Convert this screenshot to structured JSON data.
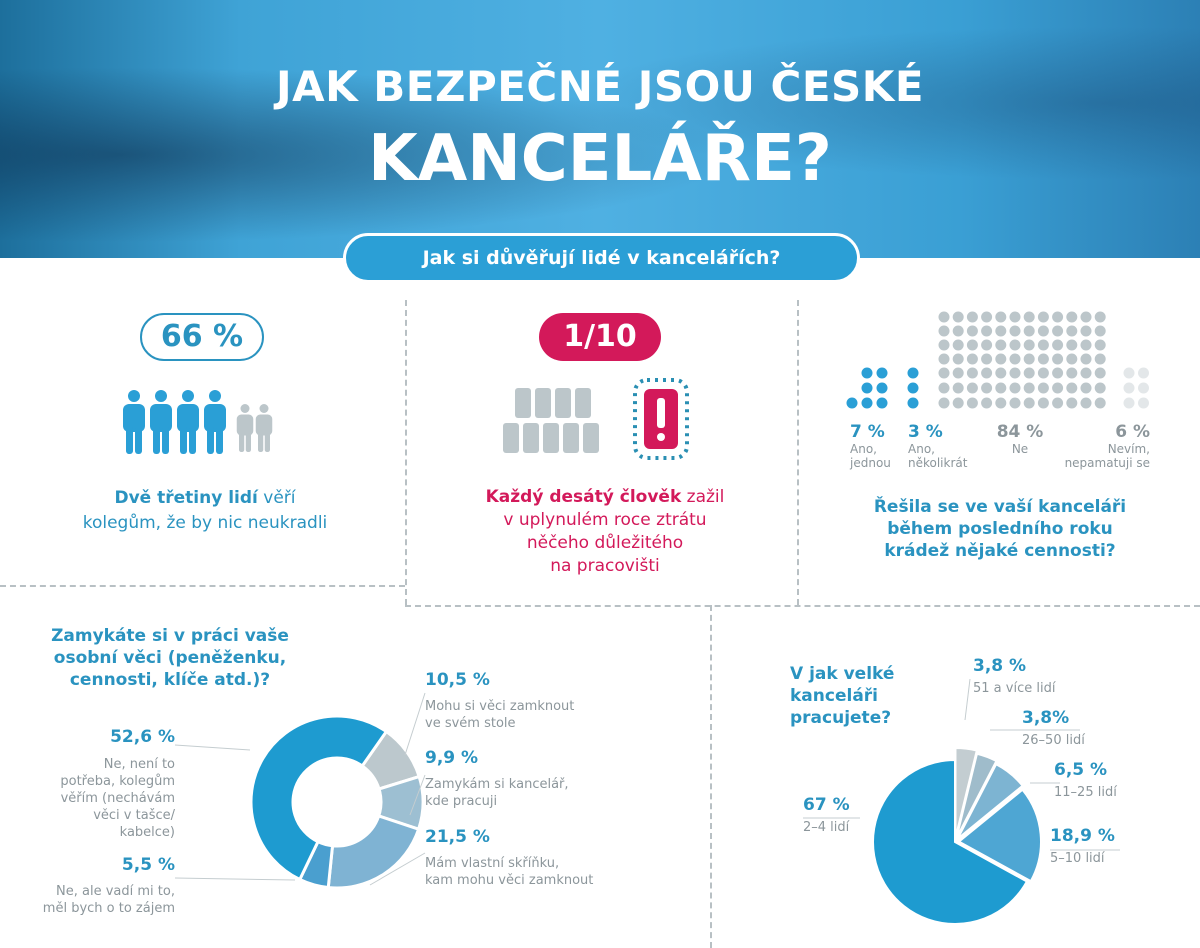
{
  "header": {
    "title_line1": "JAK BEZPEČNÉ JSOU ČESKÉ",
    "title_line2": "KANCELÁŘE?",
    "subtitle": "Jak si důvěřují lidé v kancelářích?"
  },
  "trust": {
    "stat": "66 %",
    "text_bold": "Dvě třetiny lidí",
    "text_rest1": " věří",
    "text_rest2": "kolegům, že by nic neukradli",
    "people_trusting": 4,
    "people_total": 6
  },
  "loss": {
    "stat": "1/10",
    "text_bold": "Každý desátý člověk",
    "text_rest1": " zažil",
    "line2": "v uplynulém roce ztrátu",
    "line3": "něčeho důležitého",
    "line4": "na pracovišti"
  },
  "colors": {
    "blue": "#2a9fd6",
    "teal_text": "#2a93c0",
    "pink": "#d3195a",
    "gray": "#bcc6ca"
  },
  "chart_data": [
    {
      "type": "dot-matrix",
      "title": "Řešila se ve vaší kanceláři během posledního roku krádež nějaké cennosti?",
      "title_lines": [
        "Řešila se ve vaší kanceláři",
        "během posledního roku",
        "krádež nějaké cennosti?"
      ],
      "categories": [
        {
          "value": "7 %",
          "label1": "Ano,",
          "label2": "jednou",
          "count": 7,
          "color": "#2a9fd6"
        },
        {
          "value": "3 %",
          "label1": "Ano,",
          "label2": "několikrát",
          "count": 3,
          "color": "#2a9fd6"
        },
        {
          "value": "84 %",
          "label1": "Ne",
          "label2": "",
          "count": 84,
          "color": "#bcc6ca"
        },
        {
          "value": "6 %",
          "label1": "Nevím,",
          "label2": "nepamatuji se",
          "count": 6,
          "color": "#e3e7e9"
        }
      ]
    },
    {
      "type": "donut",
      "title_lines": [
        "Zamykáte si v práci vaše",
        "osobní věci (peněženku,",
        "cennosti, klíče atd.)?"
      ],
      "series": [
        {
          "value": 10.5,
          "label": "10,5 %",
          "desc": [
            "Mohu si věci zamknout",
            "ve svém stole"
          ],
          "color": "#bcc8cd"
        },
        {
          "value": 9.9,
          "label": "9,9 %",
          "desc": [
            "Zamykám si kancelář,",
            "kde pracuji"
          ],
          "color": "#9dbfd2"
        },
        {
          "value": 21.5,
          "label": "21,5 %",
          "desc": [
            "Mám vlastní skříňku,",
            "kam mohu věci zamknout"
          ],
          "color": "#7fb3d3"
        },
        {
          "value": 5.5,
          "label": "5,5 %",
          "desc": [
            "Ne, ale vadí mi to,",
            "měl bych o to zájem"
          ],
          "color": "#4a9fcf"
        },
        {
          "value": 52.6,
          "label": "52,6 %",
          "desc": [
            "Ne, není to",
            "potřeba, kolegům",
            "věřím (nechávám",
            "věci v tašce/",
            "kabelce)"
          ],
          "color": "#1e9bd0"
        }
      ]
    },
    {
      "type": "pie",
      "title_lines": [
        "V jak velké",
        "kanceláři",
        "pracujete?"
      ],
      "series": [
        {
          "value": 3.8,
          "label": "3,8 %",
          "desc": "51 a více lidí",
          "color": "#c3cdd1"
        },
        {
          "value": 3.8,
          "label": "3,8%",
          "desc": "26–50 lidí",
          "color": "#9fbccb"
        },
        {
          "value": 6.5,
          "label": "6,5 %",
          "desc": "11–25 lidí",
          "color": "#7db4d2"
        },
        {
          "value": 18.9,
          "label": "18,9 %",
          "desc": "5–10 lidí",
          "color": "#4ea6d3"
        },
        {
          "value": 67,
          "label": "67 %",
          "desc": "2–4 lidí",
          "color": "#1e9bd0"
        }
      ]
    }
  ]
}
